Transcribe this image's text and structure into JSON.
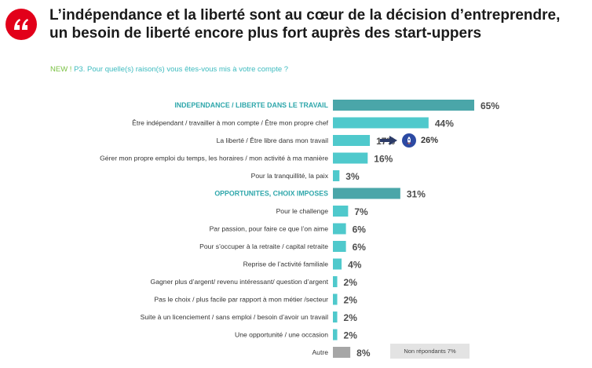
{
  "header": {
    "quote_icon": "quote-icon",
    "title_line1": "L’indépendance et la liberté sont au cœur de la décision d’entreprendre,",
    "title_line2": "un besoin de liberté encore plus fort auprès des start-uppers"
  },
  "question": {
    "tag": "NEW ! ",
    "text": "P3. Pour quelle(s) raison(s) vous êtes-vous mis à votre compte ?"
  },
  "colors": {
    "category_bar": "#4aa6a9",
    "item_bar": "#4fc9cc",
    "other_bar": "#a6a6a6",
    "category_label": "#2fa7ab",
    "accent_red": "#e2001a",
    "arrow": "#2b3a67"
  },
  "chart_data": {
    "type": "bar",
    "orientation": "horizontal",
    "categories": [
      "INDEPENDANCE / LIBERTE DANS LE TRAVAIL",
      "Être indépendant / travailler à mon compte / Être mon propre chef",
      "La liberté / Être libre dans mon travail",
      "Gérer mon propre emploi du temps, les horaires / mon activité à ma manière",
      "Pour la tranquillité, la paix",
      "OPPORTUNITES, CHOIX IMPOSES",
      "Pour le challenge",
      "Par passion, pour faire ce que l’on aime",
      "Pour s’occuper à la retraite / capital retraite",
      "Reprise de l’activité familiale",
      "Gagner plus d’argent/ revenu intéressant/ question d’argent",
      "Pas le choix / plus facile par rapport à mon métier /secteur",
      "Suite à un licenciement / sans emploi / besoin d’avoir un travail",
      "Une opportunité / une occasion",
      "Autre"
    ],
    "values": [
      65,
      44,
      17,
      16,
      3,
      31,
      7,
      6,
      6,
      4,
      2,
      2,
      2,
      2,
      8
    ],
    "value_labels": [
      "65%",
      "44%",
      "17%",
      "16%",
      "3%",
      "31%",
      "7%",
      "6%",
      "6%",
      "4%",
      "2%",
      "2%",
      "2%",
      "2%",
      "8%"
    ],
    "row_kind": [
      "category",
      "item",
      "item",
      "item",
      "item",
      "category",
      "item",
      "item",
      "item",
      "item",
      "item",
      "item",
      "item",
      "item",
      "other"
    ],
    "xlim": [
      0,
      65
    ],
    "annotation": {
      "row": 2,
      "value": "26%",
      "icon": "rocket-icon"
    },
    "note": "Non répondants 7%"
  }
}
